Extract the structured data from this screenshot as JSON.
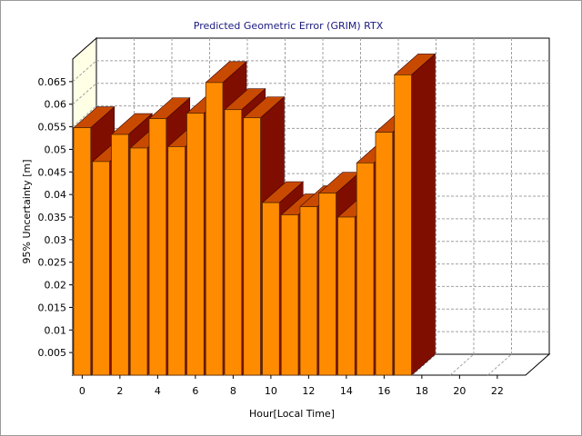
{
  "chart_data": {
    "type": "bar",
    "title": "Predicted Geometric Error (GRIM) RTX",
    "xlabel": "Hour[Local Time]",
    "ylabel": "95% Uncertainty [m]",
    "x": [
      0,
      1,
      2,
      3,
      4,
      5,
      6,
      7,
      8,
      9,
      10,
      11,
      12,
      13,
      14,
      15,
      16,
      17
    ],
    "values": [
      0.0548,
      0.0473,
      0.0533,
      0.0503,
      0.0568,
      0.0506,
      0.058,
      0.0648,
      0.0588,
      0.057,
      0.0382,
      0.0355,
      0.0373,
      0.0403,
      0.035,
      0.047,
      0.0538,
      0.0665
    ],
    "xlim": [
      0,
      24
    ],
    "ylim": [
      0,
      0.07
    ],
    "x_ticks": [
      "0",
      "2",
      "4",
      "6",
      "8",
      "10",
      "12",
      "14",
      "16",
      "18",
      "20",
      "22"
    ],
    "y_ticks": [
      "0.005",
      "0.01",
      "0.015",
      "0.02",
      "0.025",
      "0.03",
      "0.035",
      "0.04",
      "0.045",
      "0.05",
      "0.055",
      "0.06",
      "0.065"
    ],
    "grid": true,
    "legend": "none",
    "colors": {
      "bar_front": "#ff8c00",
      "bar_top": "#c84a00",
      "bar_side": "#800e00",
      "back_wall": "#ffffff",
      "side_wall": "#ffffe6",
      "grid": "#a0a0a0",
      "title": "#1a1a80"
    }
  }
}
